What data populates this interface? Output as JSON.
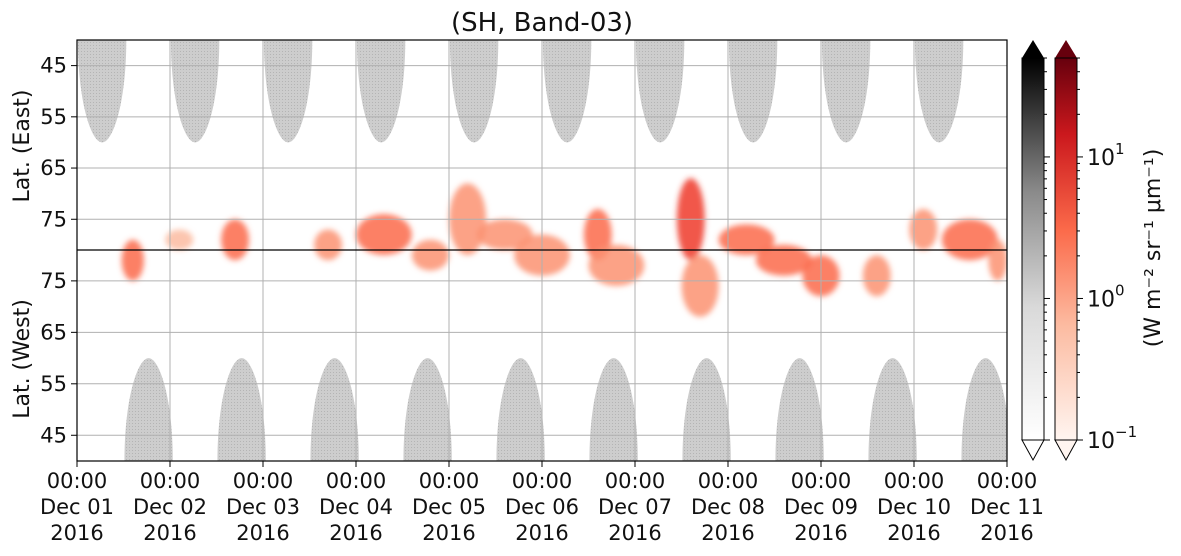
{
  "chart_data": {
    "type": "heatmap",
    "title": "(SH, Band-03)",
    "yaxis": {
      "upper_label": "Lat. (East)",
      "lower_label": "Lat. (West)",
      "upper_ticks": [
        "45",
        "55",
        "65",
        "75"
      ],
      "lower_ticks": [
        "75",
        "65",
        "55",
        "45"
      ],
      "upper_range": [
        40,
        81
      ],
      "lower_range": [
        81,
        40
      ],
      "pole_line": "black"
    },
    "xaxis": {
      "ticks": [
        {
          "time": "00:00",
          "day": "Dec 01",
          "year": "2016"
        },
        {
          "time": "00:00",
          "day": "Dec 02",
          "year": "2016"
        },
        {
          "time": "00:00",
          "day": "Dec 03",
          "year": "2016"
        },
        {
          "time": "00:00",
          "day": "Dec 04",
          "year": "2016"
        },
        {
          "time": "00:00",
          "day": "Dec 05",
          "year": "2016"
        },
        {
          "time": "00:00",
          "day": "Dec 06",
          "year": "2016"
        },
        {
          "time": "00:00",
          "day": "Dec 07",
          "year": "2016"
        },
        {
          "time": "00:00",
          "day": "Dec 08",
          "year": "2016"
        },
        {
          "time": "00:00",
          "day": "Dec 09",
          "year": "2016"
        },
        {
          "time": "00:00",
          "day": "Dec 10",
          "year": "2016"
        },
        {
          "time": "00:00",
          "day": "Dec 11",
          "year": "2016"
        }
      ],
      "range": [
        "2016-12-01 00:00",
        "2016-12-11 00:00"
      ]
    },
    "colorbar": {
      "label": "(W m⁻² sr⁻¹ μm⁻¹)",
      "scale": "log",
      "range": [
        0.1,
        50
      ],
      "ticks": [
        {
          "value": 0.1,
          "label": "10",
          "exp": "−1"
        },
        {
          "value": 1,
          "label": "10",
          "exp": "0"
        },
        {
          "value": 10,
          "label": "10",
          "exp": "1"
        }
      ],
      "extend": "both",
      "colormaps": [
        "Greys",
        "Reds"
      ]
    },
    "grid": true,
    "daylight_mask_color": "#c8c8c8",
    "daylight_lobes_east": [
      {
        "center_day": 0.27,
        "min_lat": 60
      },
      {
        "center_day": 1.27,
        "min_lat": 60
      },
      {
        "center_day": 2.27,
        "min_lat": 60
      },
      {
        "center_day": 3.27,
        "min_lat": 60
      },
      {
        "center_day": 4.27,
        "min_lat": 60
      },
      {
        "center_day": 5.27,
        "min_lat": 60
      },
      {
        "center_day": 6.27,
        "min_lat": 60
      },
      {
        "center_day": 7.27,
        "min_lat": 60
      },
      {
        "center_day": 8.27,
        "min_lat": 60
      },
      {
        "center_day": 9.27,
        "min_lat": 60
      }
    ],
    "daylight_lobes_west": [
      {
        "center_day": 0.77,
        "min_lat": 60
      },
      {
        "center_day": 1.77,
        "min_lat": 60
      },
      {
        "center_day": 2.77,
        "min_lat": 60
      },
      {
        "center_day": 3.77,
        "min_lat": 60
      },
      {
        "center_day": 4.77,
        "min_lat": 60
      },
      {
        "center_day": 5.77,
        "min_lat": 60
      },
      {
        "center_day": 6.77,
        "min_lat": 60
      },
      {
        "center_day": 7.77,
        "min_lat": 60
      },
      {
        "center_day": 8.77,
        "min_lat": 60
      },
      {
        "center_day": 9.77,
        "min_lat": 60
      }
    ],
    "emission_blobs": [
      {
        "day": 0.6,
        "lat": -79,
        "spread_day": 0.12,
        "spread_lat": 4,
        "value": 3
      },
      {
        "day": 1.1,
        "lat": 79,
        "spread_day": 0.15,
        "spread_lat": 2,
        "value": 0.6
      },
      {
        "day": 1.7,
        "lat": 79,
        "spread_day": 0.15,
        "spread_lat": 4,
        "value": 2
      },
      {
        "day": 2.7,
        "lat": 80,
        "spread_day": 0.15,
        "spread_lat": 3,
        "value": 1
      },
      {
        "day": 3.3,
        "lat": 78,
        "spread_day": 0.3,
        "spread_lat": 4,
        "value": 2
      },
      {
        "day": 3.8,
        "lat": -80,
        "spread_day": 0.2,
        "spread_lat": 3,
        "value": 1.5
      },
      {
        "day": 4.2,
        "lat": 75,
        "spread_day": 0.2,
        "spread_lat": 7,
        "value": 1
      },
      {
        "day": 4.6,
        "lat": 78,
        "spread_day": 0.3,
        "spread_lat": 3,
        "value": 1.5
      },
      {
        "day": 5.0,
        "lat": -80,
        "spread_day": 0.3,
        "spread_lat": 4,
        "value": 0.8
      },
      {
        "day": 5.6,
        "lat": 78,
        "spread_day": 0.15,
        "spread_lat": 5,
        "value": 3
      },
      {
        "day": 5.8,
        "lat": -78,
        "spread_day": 0.3,
        "spread_lat": 4,
        "value": 1
      },
      {
        "day": 6.6,
        "lat": 75,
        "spread_day": 0.15,
        "spread_lat": 8,
        "value": 4
      },
      {
        "day": 6.7,
        "lat": -74,
        "spread_day": 0.2,
        "spread_lat": 6,
        "value": 1
      },
      {
        "day": 7.2,
        "lat": 79,
        "spread_day": 0.3,
        "spread_lat": 3,
        "value": 2
      },
      {
        "day": 7.6,
        "lat": -79,
        "spread_day": 0.3,
        "spread_lat": 3,
        "value": 2
      },
      {
        "day": 8.0,
        "lat": -76,
        "spread_day": 0.2,
        "spread_lat": 4,
        "value": 2
      },
      {
        "day": 8.6,
        "lat": -76,
        "spread_day": 0.15,
        "spread_lat": 4,
        "value": 1.5
      },
      {
        "day": 9.1,
        "lat": 77,
        "spread_day": 0.15,
        "spread_lat": 4,
        "value": 0.8
      },
      {
        "day": 9.6,
        "lat": 79,
        "spread_day": 0.3,
        "spread_lat": 4,
        "value": 2
      },
      {
        "day": 9.9,
        "lat": -79,
        "spread_day": 0.1,
        "spread_lat": 4,
        "value": 1
      }
    ]
  }
}
